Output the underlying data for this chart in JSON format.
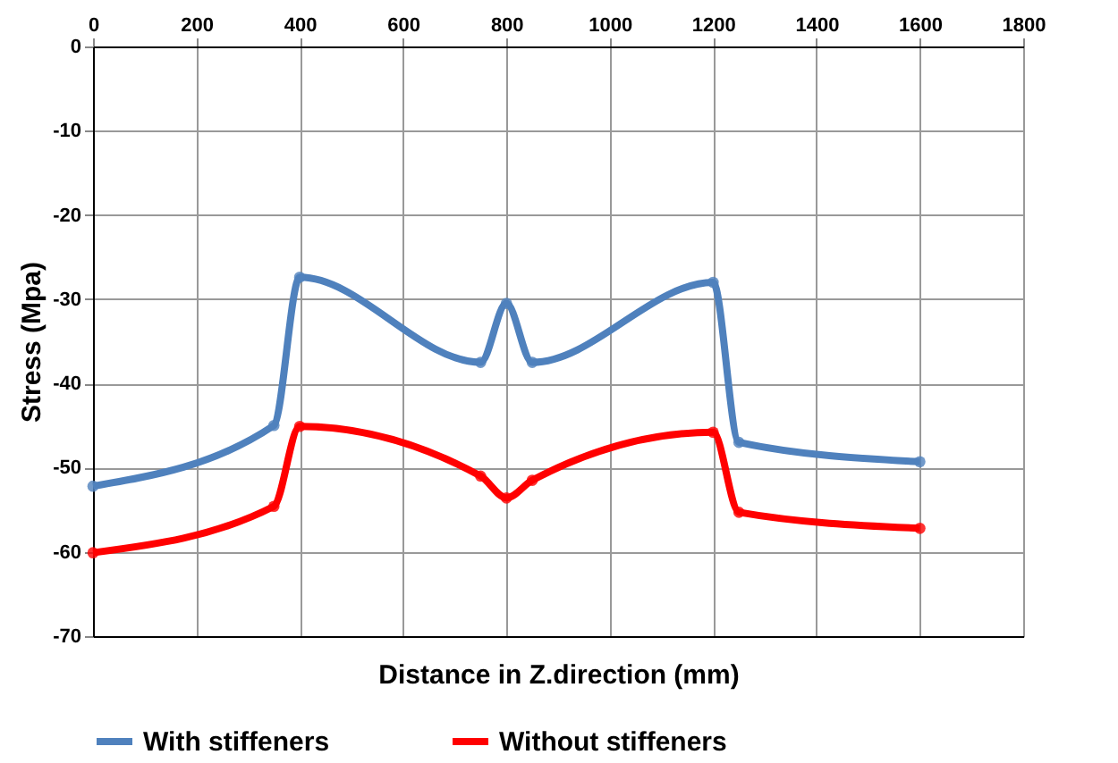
{
  "chart_data": {
    "type": "line",
    "xlabel": "Distance in Z.direction (mm)",
    "ylabel": "Stress (Mpa)",
    "x": [
      0,
      350,
      400,
      750,
      800,
      850,
      1200,
      1250,
      1600
    ],
    "series": [
      {
        "name": "With stiffeners",
        "color": "#4f81bd",
        "values": [
          -52.2,
          -45,
          -27.4,
          -37.5,
          -30.5,
          -37.5,
          -28,
          -47,
          -49.3
        ]
      },
      {
        "name": "Without stiffeners",
        "color": "#ff0000",
        "values": [
          -60.1,
          -54.6,
          -45.1,
          -51,
          -53.6,
          -51.5,
          -45.8,
          -55.3,
          -57.2
        ]
      }
    ],
    "xlim": [
      0,
      1800
    ],
    "xticks": [
      0,
      200,
      400,
      600,
      800,
      1000,
      1200,
      1400,
      1600,
      1800
    ],
    "ylim": [
      -70,
      0
    ],
    "yticks": [
      -70,
      -60,
      -50,
      -40,
      -30,
      -20,
      -10,
      0
    ],
    "grid": true,
    "legend": "bottom",
    "marker": "circle",
    "line_style": "solid"
  }
}
